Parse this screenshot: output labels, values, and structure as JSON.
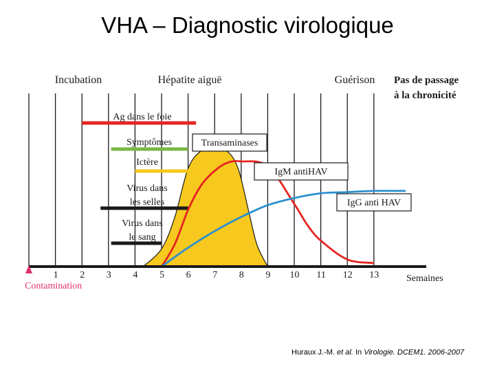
{
  "slide": {
    "title": "VHA – Diagnostic virologique"
  },
  "citation": {
    "authors": "Huraux J.-M.",
    "etal": "et al.",
    "in": "In",
    "source": "Virologie. DCEM1. 2006-2007"
  },
  "chart_data": {
    "type": "area",
    "x_axis": {
      "ticks": [
        "1",
        "2",
        "3",
        "4",
        "5",
        "6",
        "7",
        "8",
        "9",
        "10",
        "11",
        "12",
        "13"
      ],
      "label": "Semaines",
      "origin_label": "Contamination",
      "range": [
        0,
        15
      ]
    },
    "phases": {
      "incubation": "Incubation",
      "acute": "Hépatite aiguë",
      "recovery": "Guérison",
      "chronicity": "Pas de passage\nà la chronicité"
    },
    "bars": [
      {
        "label": "Ag dans le foie",
        "start": 2,
        "end": 6.3,
        "color": "#e52420"
      },
      {
        "label": "Symptômes",
        "start": 3.1,
        "end": 6.0,
        "color": "#7ab648"
      },
      {
        "label": "Ictère",
        "start": 4.0,
        "end": 6.0,
        "color": "#f7c81e"
      },
      {
        "label": "Virus dans\nles selles",
        "start": 2.7,
        "end": 6.0,
        "color": "#1a1a1a"
      },
      {
        "label": "Virus dans\nle sang",
        "start": 3.1,
        "end": 5.0,
        "color": "#1a1a1a"
      }
    ],
    "series": [
      {
        "name": "Transaminases",
        "type": "area",
        "color": "#f7c81e",
        "x": [
          4.3,
          5,
          5.5,
          6,
          6.5,
          7,
          7.5,
          7.9,
          8.3,
          8.6,
          9.0
        ],
        "y": [
          0,
          0.15,
          0.42,
          0.83,
          0.98,
          1.0,
          0.97,
          0.82,
          0.45,
          0.18,
          0
        ]
      },
      {
        "name": "IgM antiHAV",
        "type": "line",
        "color": "#e52420",
        "x": [
          5,
          5.5,
          6,
          6.5,
          7,
          7.5,
          8,
          9,
          10,
          10.5,
          11,
          12,
          13
        ],
        "y": [
          0,
          0.19,
          0.48,
          0.69,
          0.81,
          0.88,
          0.89,
          0.85,
          0.53,
          0.35,
          0.22,
          0.06,
          0.03
        ]
      },
      {
        "name": "IgG anti HAV",
        "type": "line",
        "color": "#2a8fd0",
        "x": [
          5,
          6,
          7,
          8,
          9,
          10,
          11,
          12,
          13,
          14.2
        ],
        "y": [
          0,
          0.16,
          0.3,
          0.42,
          0.52,
          0.58,
          0.62,
          0.63,
          0.64,
          0.64
        ]
      }
    ],
    "colors": {
      "grid": "#1a1a1a",
      "origin_marker": "#e0306a",
      "axis": "#1a1a1a"
    }
  }
}
